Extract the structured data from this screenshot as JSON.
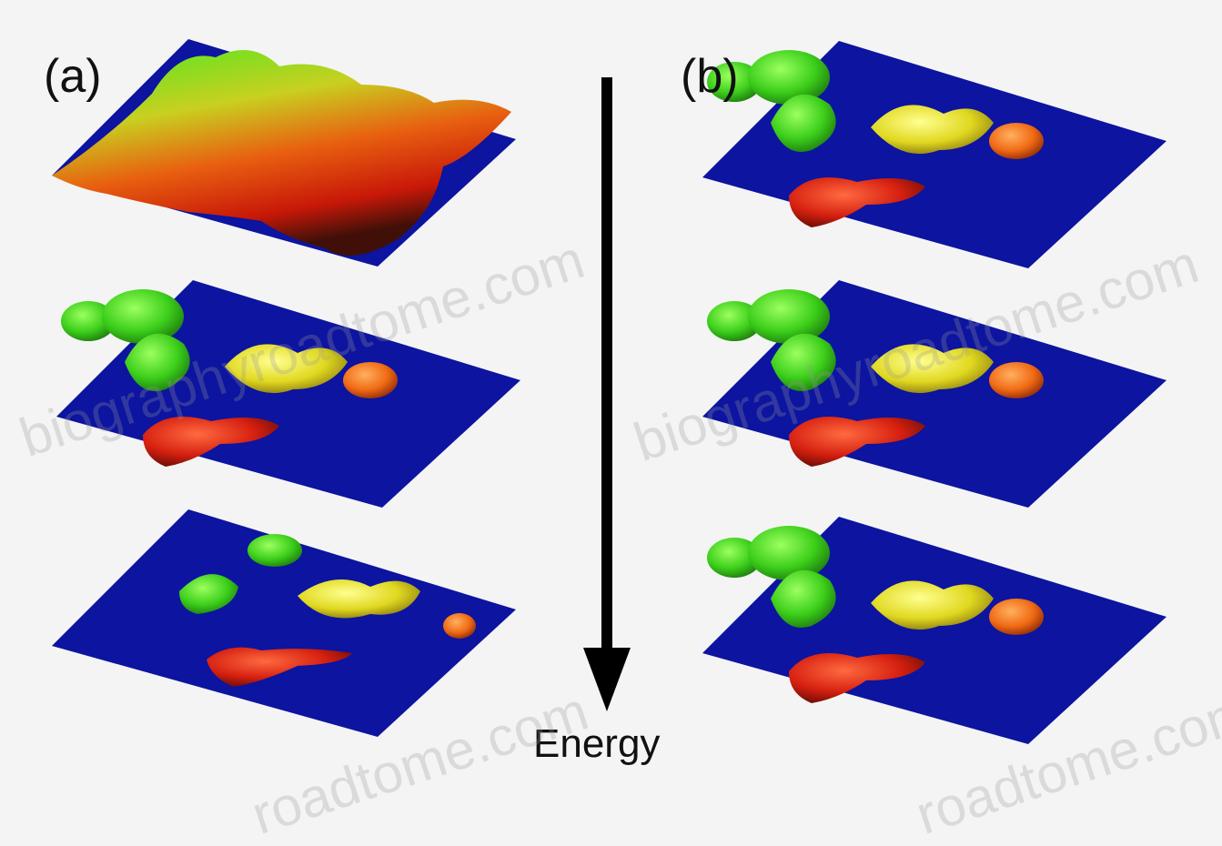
{
  "panels": [
    {
      "label": "(a)"
    },
    {
      "label": "(b)"
    }
  ],
  "arrow": {
    "label": "Energy"
  },
  "watermarks": [
    "biographyroadtome.com",
    "biographyroadtome.com",
    "roadtome.com",
    "roadtome.com"
  ],
  "colors": {
    "plane": "#0c14a0",
    "red": "#d81c10",
    "orange": "#f05a10",
    "yellow": "#e8e020",
    "green": "#36d018",
    "arrow": "#000000"
  }
}
